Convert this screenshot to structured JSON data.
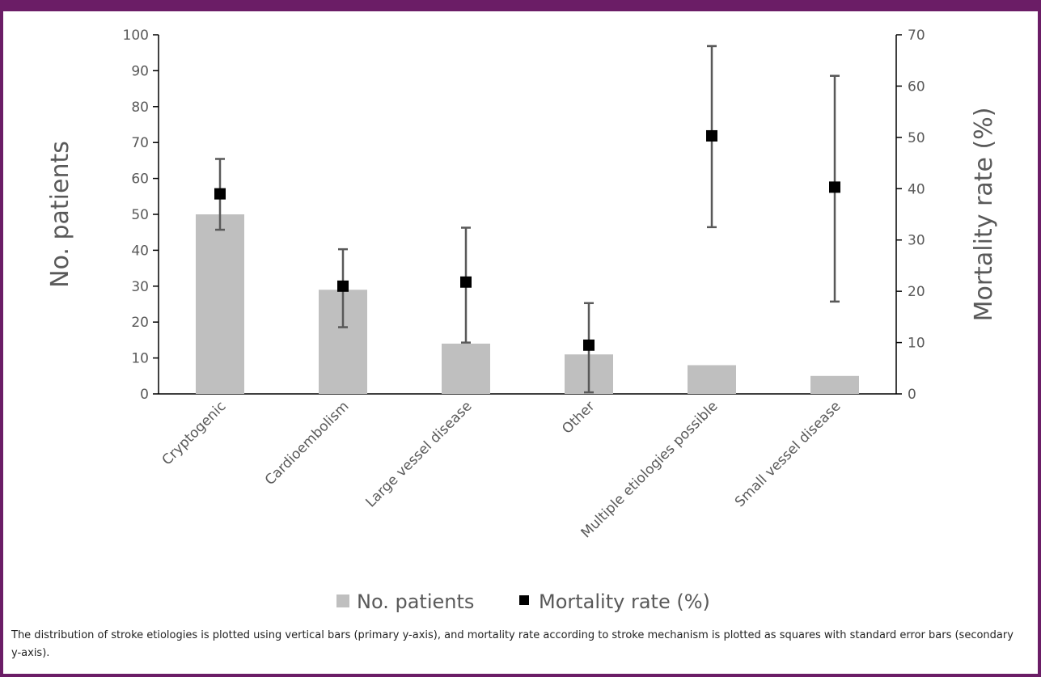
{
  "chart_data": {
    "type": "bar",
    "categories": [
      "Cryptogenic",
      "Cardioembolism",
      "Large vessel disease",
      "Other",
      "Multiple etiologies possible",
      "Small vessel disease"
    ],
    "series": [
      {
        "name": "No. patients",
        "kind": "bar",
        "axis": "left",
        "color": "#bfbfbf",
        "values": [
          50,
          29,
          14,
          11,
          8,
          5
        ]
      },
      {
        "name": "Mortality rate (%)",
        "kind": "marker",
        "axis": "right",
        "color": "#000000",
        "values": [
          39,
          21,
          21.8,
          9.5,
          50.3,
          40.3
        ],
        "error_low": [
          32,
          13,
          10,
          0.3,
          32.5,
          18
        ],
        "error_high": [
          45.8,
          28.2,
          32.4,
          17.7,
          67.8,
          62
        ]
      }
    ],
    "ylabel": "No. patients",
    "ylim": [
      0,
      100
    ],
    "yticks": [
      0,
      10,
      20,
      30,
      40,
      50,
      60,
      70,
      80,
      90,
      100
    ],
    "y2label": "Mortality rate (%)",
    "y2lim": [
      0,
      70
    ],
    "y2ticks": [
      0,
      10,
      20,
      30,
      40,
      50,
      60,
      70
    ],
    "grid": false,
    "legend": "bottom"
  },
  "caption": "The  distribution of stroke etiologies is plotted using vertical bars (primary y-axis), and mortality rate according to stroke mechanism is plotted as squares with standard error bars (secondary y-axis).",
  "colors": {
    "frame": "#6b1d66",
    "bar": "#bfbfbf",
    "marker": "#000000",
    "error_bar": "#595959",
    "axis": "#000000",
    "text": "#595959"
  }
}
